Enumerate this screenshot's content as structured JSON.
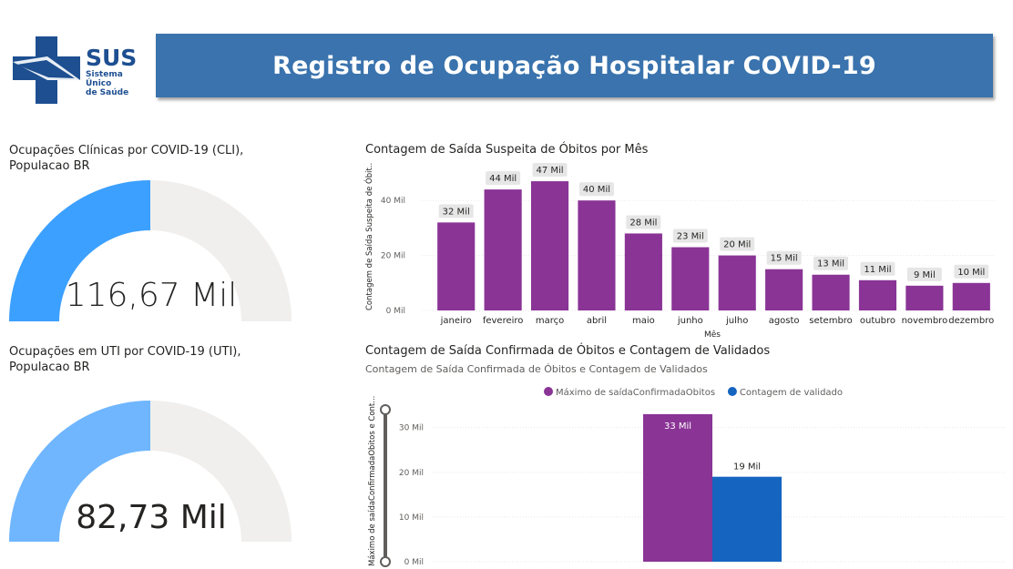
{
  "logo": {
    "wordmark": "SUS",
    "line1": "Sistema",
    "line2": "Único",
    "line3": "de Saúde"
  },
  "header": {
    "title": "Registro de Ocupação Hospitalar COVID-19"
  },
  "gauge_cli": {
    "title_line1": "Ocupações Clínicas por COVID-19 (CLI),",
    "title_line2": "Populacao BR",
    "value": "116,67 Mil",
    "fill_fraction": 0.5,
    "color": "#3ba0ff"
  },
  "gauge_uti": {
    "title_line1": "Ocupações em UTI por COVID-19 (UTI),",
    "title_line2": "Populacao BR",
    "value": "82,73 Mil",
    "fill_fraction": 0.5,
    "color": "#6fb6ff"
  },
  "chart_data": [
    {
      "type": "bar",
      "title": "Contagem de Saída Suspeita de Óbitos por Mês",
      "xlabel": "Mês",
      "ylabel": "Contagem de Saída Suspeita de Óbit...",
      "ylim": [
        0,
        50000
      ],
      "yticks": [
        0,
        20000,
        40000
      ],
      "ytick_labels": [
        "0 Mil",
        "20 Mil",
        "40 Mil"
      ],
      "categories": [
        "janeiro",
        "fevereiro",
        "março",
        "abril",
        "maio",
        "junho",
        "julho",
        "agosto",
        "setembro",
        "outubro",
        "novembro",
        "dezembro"
      ],
      "values": [
        32000,
        44000,
        47000,
        40000,
        28000,
        23000,
        20000,
        15000,
        13000,
        11000,
        9000,
        10000
      ],
      "data_labels": [
        "32 Mil",
        "44 Mil",
        "47 Mil",
        "40 Mil",
        "28 Mil",
        "23 Mil",
        "20 Mil",
        "15 Mil",
        "13 Mil",
        "11 Mil",
        "9 Mil",
        "10 Mil"
      ],
      "color": "#8a3496",
      "grid": true
    },
    {
      "type": "bar",
      "title": "Contagem de Saída Confirmada de Óbitos e Contagem de Validados",
      "subtitle": "Contagem de Saída Confirmada de Óbitos e Contagem de Validados",
      "ylabel": "Máximo de saídaConfirmadaObitos e Cont...",
      "ylim": [
        0,
        34000
      ],
      "yticks": [
        0,
        10000,
        20000,
        30000
      ],
      "ytick_labels": [
        "0 Mil",
        "10 Mil",
        "20 Mil",
        "30 Mil"
      ],
      "series": [
        {
          "name": "Máximo de saídaConfirmadaObitos",
          "values": [
            33000
          ],
          "label": "33 Mil",
          "color": "#8a3496"
        },
        {
          "name": "Contagem de validado",
          "values": [
            19000
          ],
          "label": "19 Mil",
          "color": "#1565c0"
        }
      ],
      "legend": "top-center",
      "grid": true
    }
  ]
}
